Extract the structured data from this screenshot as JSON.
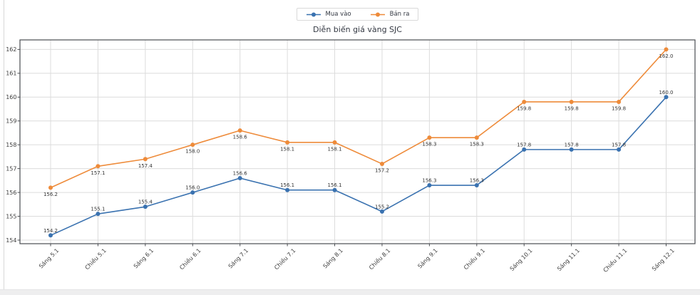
{
  "page": {
    "background": "#ffffff",
    "card_border_color": "#d8d8d8",
    "footer_strip_color": "#eeeeef"
  },
  "chart_data": {
    "type": "line",
    "title": "Diễn biến giá vàng SJC",
    "categories": [
      "Sáng 5.1",
      "Chiều 5.1",
      "Sáng 6.1",
      "Chiều 6.1",
      "Sáng 7.1",
      "Chiều 7.1",
      "Sáng 8.1",
      "Chiều 8.1",
      "Sáng 9.1",
      "Chiều 9.1",
      "Sáng 10.1",
      "Sáng 11.1",
      "Chiều 11.1",
      "Sáng 12.1"
    ],
    "series": [
      {
        "name": "Mua vào",
        "color": "#3a72b0",
        "marker": "circle",
        "label_position": "above",
        "values": [
          154.2,
          155.1,
          155.4,
          156.0,
          156.6,
          156.1,
          156.1,
          155.2,
          156.3,
          156.3,
          157.8,
          157.8,
          157.8,
          160.0
        ]
      },
      {
        "name": "Bán ra",
        "color": "#ee8b3a",
        "marker": "circle",
        "label_position": "below",
        "values": [
          156.2,
          157.1,
          157.4,
          158.0,
          158.6,
          158.1,
          158.1,
          157.2,
          158.3,
          158.3,
          159.8,
          159.8,
          159.8,
          162.0
        ]
      }
    ],
    "yticks": [
      154,
      155,
      156,
      157,
      158,
      159,
      160,
      161,
      162
    ],
    "ylim": [
      153.85,
      162.4
    ],
    "grid": true,
    "grid_color": "#dcdcdc",
    "axis_border_color": "#4a4d52",
    "tick_label_color": "#3b3b3b",
    "value_label_color": "#333333",
    "legend_position": "top-center",
    "value_labels": true,
    "x_label_rotation": -45
  }
}
